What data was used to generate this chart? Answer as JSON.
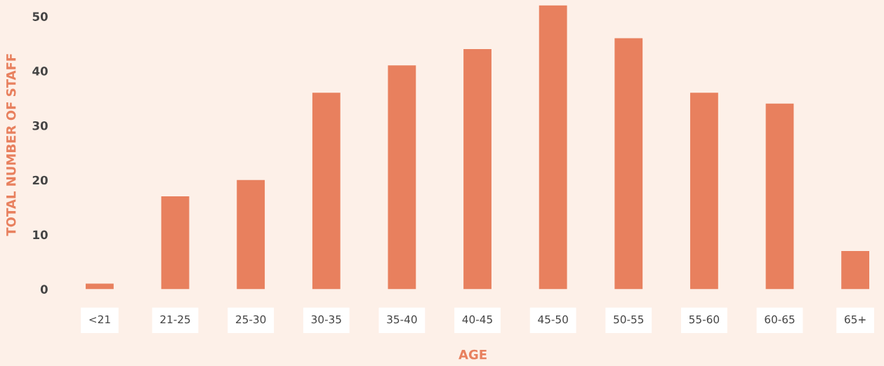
{
  "chart_data": {
    "type": "bar",
    "categories": [
      "<21",
      "21-25",
      "25-30",
      "30-35",
      "35-40",
      "40-45",
      "45-50",
      "50-55",
      "55-60",
      "60-65",
      "65+"
    ],
    "values": [
      1,
      17,
      20,
      36,
      41,
      44,
      52,
      46,
      36,
      34,
      7
    ],
    "color": "#e8805e",
    "xlabel": "AGE",
    "ylabel": "TOTAL NUMBER OF STAFF",
    "ylim": [
      0,
      53
    ],
    "yticks": [
      0,
      10,
      20,
      30,
      40,
      50
    ],
    "grid": false,
    "legend": false
  }
}
